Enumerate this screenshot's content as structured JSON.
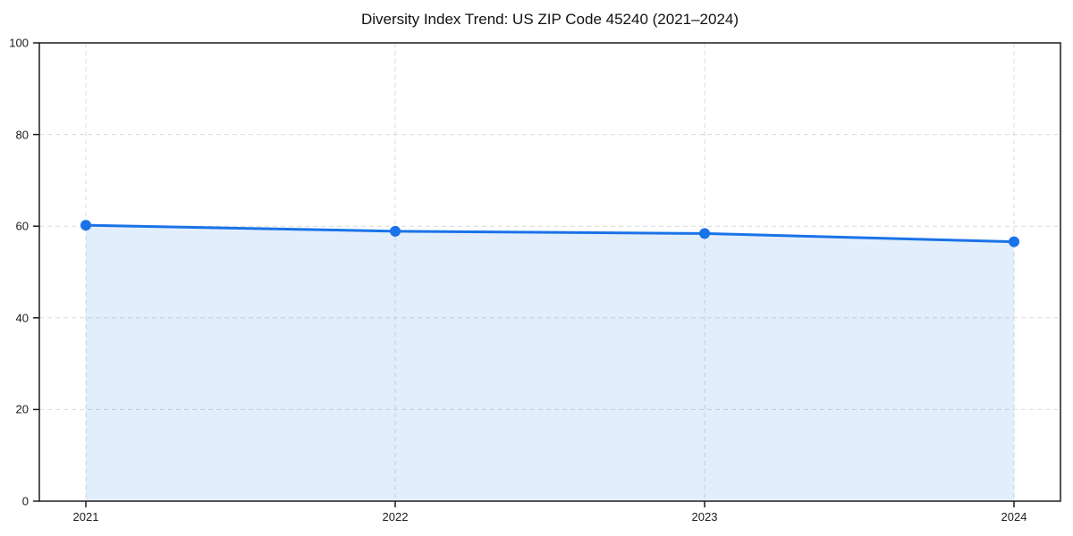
{
  "title": "Diversity Index Trend: US ZIP Code 45240 (2021–2024)",
  "colors": {
    "line": "#1a73e8",
    "marker": "#1a73e8",
    "fill": "rgba(26,115,232,0.12)",
    "grid": "#d9d9d9",
    "spine": "#1c1c1c",
    "tick_label": "#1a1a1a",
    "background": "#ffffff"
  },
  "chart_data": {
    "type": "area",
    "title": "Diversity Index Trend: US ZIP Code 45240 (2021–2024)",
    "x": [
      2021,
      2022,
      2023,
      2024
    ],
    "categories": [
      "2021",
      "2022",
      "2023",
      "2024"
    ],
    "series": [
      {
        "name": "Diversity Index",
        "values": [
          60.2,
          58.9,
          58.4,
          56.6
        ]
      }
    ],
    "xlabel": "",
    "ylabel": "",
    "ylim": [
      0,
      100
    ],
    "yticks": [
      0,
      20,
      40,
      60,
      80,
      100
    ],
    "grid": "dashed-both-axes",
    "legend": "none",
    "marker": "circle",
    "fill_to_zero": true
  }
}
